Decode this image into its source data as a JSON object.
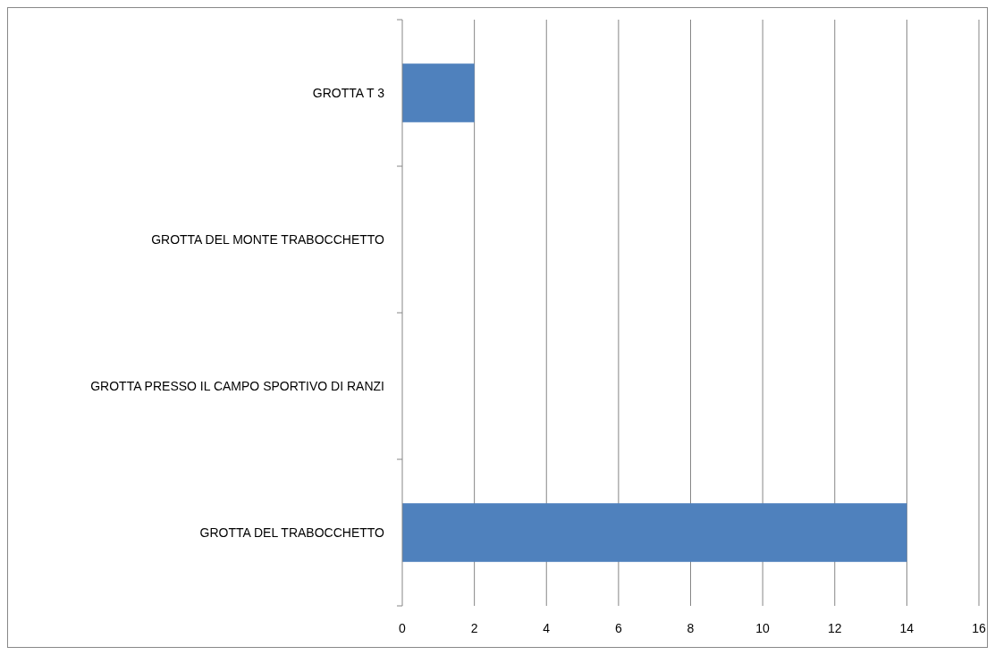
{
  "chart_data": {
    "type": "bar",
    "orientation": "horizontal",
    "categories": [
      "GROTTA T 3",
      "GROTTA DEL MONTE TRABOCCHETTO",
      "GROTTA PRESSO IL CAMPO SPORTIVO DI RANZI",
      "GROTTA DEL TRABOCCHETTO"
    ],
    "values": [
      2,
      0,
      0,
      14
    ],
    "color": "#4f81bd",
    "xlim": [
      0,
      16
    ],
    "xticks": [
      0,
      2,
      4,
      6,
      8,
      10,
      12,
      14,
      16
    ],
    "grid": "x"
  }
}
